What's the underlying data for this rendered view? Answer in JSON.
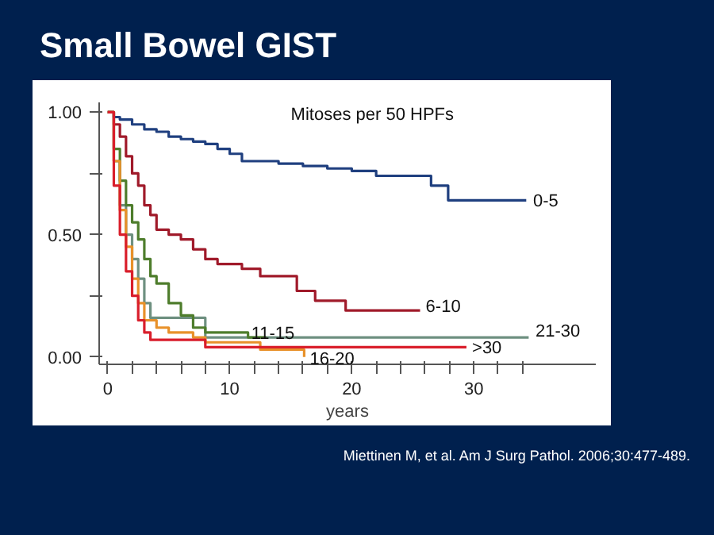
{
  "chart_data": {
    "type": "step",
    "title": "Small Bowel GIST",
    "xlabel": "years",
    "xlim": [
      -0.7,
      40
    ],
    "ylim": [
      -0.03,
      1.04
    ],
    "xticks": [
      0,
      {
        "value": 2,
        "label": null
      },
      {
        "value": 4,
        "label": null
      },
      {
        "value": 6,
        "label": null
      },
      {
        "value": 8,
        "label": null
      },
      10,
      {
        "value": 12,
        "label": null
      },
      {
        "value": 14,
        "label": null
      },
      {
        "value": 16,
        "label": null
      },
      {
        "value": 18,
        "label": null
      },
      20,
      {
        "value": 22,
        "label": null
      },
      {
        "value": 24,
        "label": null
      },
      {
        "value": 26,
        "label": null
      },
      {
        "value": 28,
        "label": null
      },
      30,
      {
        "value": 32,
        "label": null
      },
      {
        "value": 34,
        "label": null
      }
    ],
    "yticks": [
      {
        "value": 0,
        "label": "0.00"
      },
      {
        "value": 0.25,
        "label": null
      },
      {
        "value": 0.5,
        "label": "0.50"
      },
      {
        "value": 0.75,
        "label": null
      },
      {
        "value": 1,
        "label": "1.00"
      }
    ],
    "grid": false,
    "series": [
      {
        "color": "#1f3f7f",
        "x": [
          0,
          0.5,
          1,
          2,
          3,
          4,
          5,
          6,
          7,
          8,
          9,
          10,
          11,
          12,
          14,
          16,
          18,
          20,
          22,
          26.5,
          27.9,
          34.3
        ],
        "values": [
          1,
          0.98,
          0.97,
          0.95,
          0.93,
          0.92,
          0.9,
          0.89,
          0.88,
          0.87,
          0.85,
          0.83,
          0.8,
          0.8,
          0.79,
          0.78,
          0.77,
          0.76,
          0.74,
          0.7,
          0.64,
          0.64
        ]
      },
      {
        "color": "#a01a2a",
        "x": [
          0,
          0.5,
          1,
          1.5,
          2,
          2.5,
          3,
          3.5,
          4,
          5,
          6,
          7,
          8,
          9,
          11,
          12.5,
          15.5,
          17,
          19.5,
          25.6
        ],
        "values": [
          1,
          0.95,
          0.9,
          0.82,
          0.75,
          0.7,
          0.62,
          0.58,
          0.52,
          0.5,
          0.48,
          0.44,
          0.4,
          0.38,
          0.36,
          0.33,
          0.27,
          0.23,
          0.19,
          0.19
        ]
      },
      {
        "color": "#6e9080",
        "x": [
          0,
          0.5,
          1,
          1.5,
          2,
          2.5,
          3,
          3.5,
          5,
          8,
          34.5
        ],
        "values": [
          1,
          0.8,
          0.62,
          0.5,
          0.4,
          0.32,
          0.22,
          0.16,
          0.16,
          0.08,
          0.08
        ]
      },
      {
        "color": "#4e7d2c",
        "x": [
          0,
          0.5,
          1,
          1.5,
          2,
          2.5,
          3,
          3.5,
          4,
          5,
          6,
          7,
          8,
          11.5,
          13
        ],
        "values": [
          1,
          0.85,
          0.72,
          0.62,
          0.55,
          0.48,
          0.4,
          0.33,
          0.3,
          0.22,
          0.17,
          0.12,
          0.1,
          0.08,
          0.08
        ]
      },
      {
        "color": "#e8912a",
        "x": [
          0,
          0.5,
          1,
          1.5,
          2,
          2.5,
          3,
          4,
          5,
          7,
          8,
          12.5,
          16,
          16.1
        ],
        "values": [
          1,
          0.8,
          0.6,
          0.45,
          0.32,
          0.22,
          0.15,
          0.12,
          0.1,
          0.08,
          0.06,
          0.03,
          0.03,
          0.0
        ]
      },
      {
        "color": "#d91e2b",
        "x": [
          0,
          0.5,
          1,
          1.5,
          2,
          2.5,
          3,
          3.5,
          5,
          8,
          29.4
        ],
        "values": [
          1,
          0.7,
          0.5,
          0.35,
          0.25,
          0.15,
          0.1,
          0.07,
          0.07,
          0.04,
          0.04
        ]
      }
    ],
    "annotations": [
      "Mitoses per 50 HPFs",
      {
        "text": "0-5",
        "x": 34.6,
        "y": 0.64
      },
      {
        "text": "6-10",
        "x": 25.8,
        "y": 0.21
      },
      {
        "text": "21-30",
        "x": 34.8,
        "y": 0.11
      },
      {
        "text": "11-15",
        "x": 11.5,
        "y": 0.1
      },
      {
        "text": "16-20",
        "x": 16.3,
        "y": -0.005
      },
      {
        "text": ">30",
        "x": 29.6,
        "y": 0.035
      },
      "Miettinen M, et al. Am J Surg Pathol. 2006;30:477-489."
    ]
  }
}
